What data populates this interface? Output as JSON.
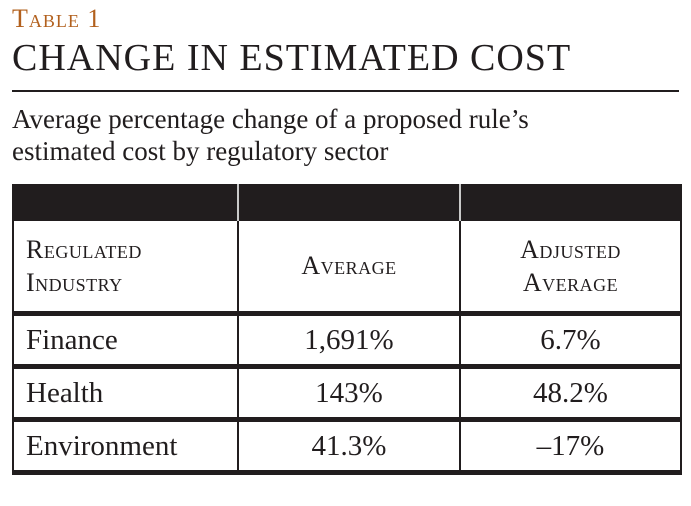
{
  "colors": {
    "accent": "#b2601d",
    "ink": "#211d1e",
    "band": "#211d1e",
    "sep": "#c9c9c9"
  },
  "chart_data": {
    "type": "table",
    "table_number": "Table 1",
    "title": "CHANGE IN ESTIMATED COST",
    "caption": "Average percentage change of a proposed rule’s estimated cost by regulatory sector",
    "columns": [
      "Regulated Industry",
      "Average",
      "Adjusted Average"
    ],
    "rows": [
      [
        "Finance",
        "1,691%",
        "6.7%"
      ],
      [
        "Health",
        "143%",
        "48.2%"
      ],
      [
        "Environment",
        "41.3%",
        "–17%"
      ]
    ]
  }
}
